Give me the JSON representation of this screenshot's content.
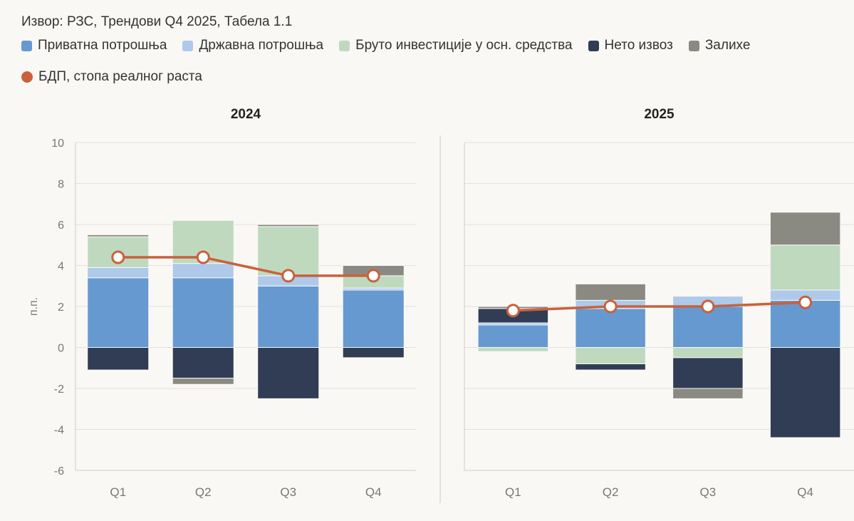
{
  "source": "Извор: РЗС, Трендови Q4 2025, Табела 1.1",
  "legend": [
    {
      "label": "Приватна потрошња",
      "color": "#6699d0",
      "shape": "square"
    },
    {
      "label": "Државна потрошња",
      "color": "#aec9ea",
      "shape": "square"
    },
    {
      "label": "Бруто инвестиције у осн. средства",
      "color": "#bfd9bf",
      "shape": "square"
    },
    {
      "label": "Нето извоз",
      "color": "#313d55",
      "shape": "square"
    },
    {
      "label": "Залихе",
      "color": "#8a8a82",
      "shape": "square"
    },
    {
      "label": "БДП, стопа реалног раста",
      "color": "#c9613c",
      "shape": "dot"
    }
  ],
  "chart_data": [
    {
      "type": "bar",
      "stacked": true,
      "title": "2024",
      "ylabel": "п.п.",
      "ylim": [
        -6,
        10
      ],
      "yticks": [
        -6,
        -4,
        -2,
        0,
        2,
        4,
        6,
        8,
        10
      ],
      "categories": [
        "Q1",
        "Q2",
        "Q3",
        "Q4"
      ],
      "series": [
        {
          "name": "Приватна потрошња",
          "values": [
            3.4,
            3.4,
            3.0,
            2.8
          ]
        },
        {
          "name": "Државна потрошња",
          "values": [
            0.5,
            0.7,
            0.5,
            0.1
          ]
        },
        {
          "name": "Бруто инвестиције у осн. средства",
          "values": [
            1.5,
            2.1,
            2.4,
            0.6
          ]
        },
        {
          "name": "Нето извоз",
          "values": [
            -1.1,
            -1.5,
            -2.5,
            -0.5
          ]
        },
        {
          "name": "Залихе",
          "values": [
            0.1,
            -0.3,
            0.1,
            0.5
          ]
        }
      ],
      "line": {
        "name": "БДП, стопа реалног раста",
        "values": [
          4.4,
          4.4,
          3.5,
          3.5
        ]
      }
    },
    {
      "type": "bar",
      "stacked": true,
      "title": "2025",
      "ylabel": "",
      "ylim": [
        -6,
        10
      ],
      "categories": [
        "Q1",
        "Q2",
        "Q3",
        "Q4"
      ],
      "series": [
        {
          "name": "Приватна потрошња",
          "values": [
            1.1,
            1.9,
            2.0,
            2.3
          ]
        },
        {
          "name": "Државна потрошња",
          "values": [
            0.1,
            0.4,
            0.5,
            0.5
          ]
        },
        {
          "name": "Бруто инвестиције у осн. средства",
          "values": [
            -0.2,
            -0.8,
            -0.5,
            2.2
          ]
        },
        {
          "name": "Нето извоз",
          "values": [
            0.7,
            -0.3,
            -1.5,
            -4.4
          ]
        },
        {
          "name": "Залихе",
          "values": [
            0.1,
            0.8,
            -0.5,
            1.6
          ]
        }
      ],
      "line": {
        "name": "БДП, стопа реалног раста",
        "values": [
          1.8,
          2.0,
          2.0,
          2.2
        ]
      }
    }
  ]
}
